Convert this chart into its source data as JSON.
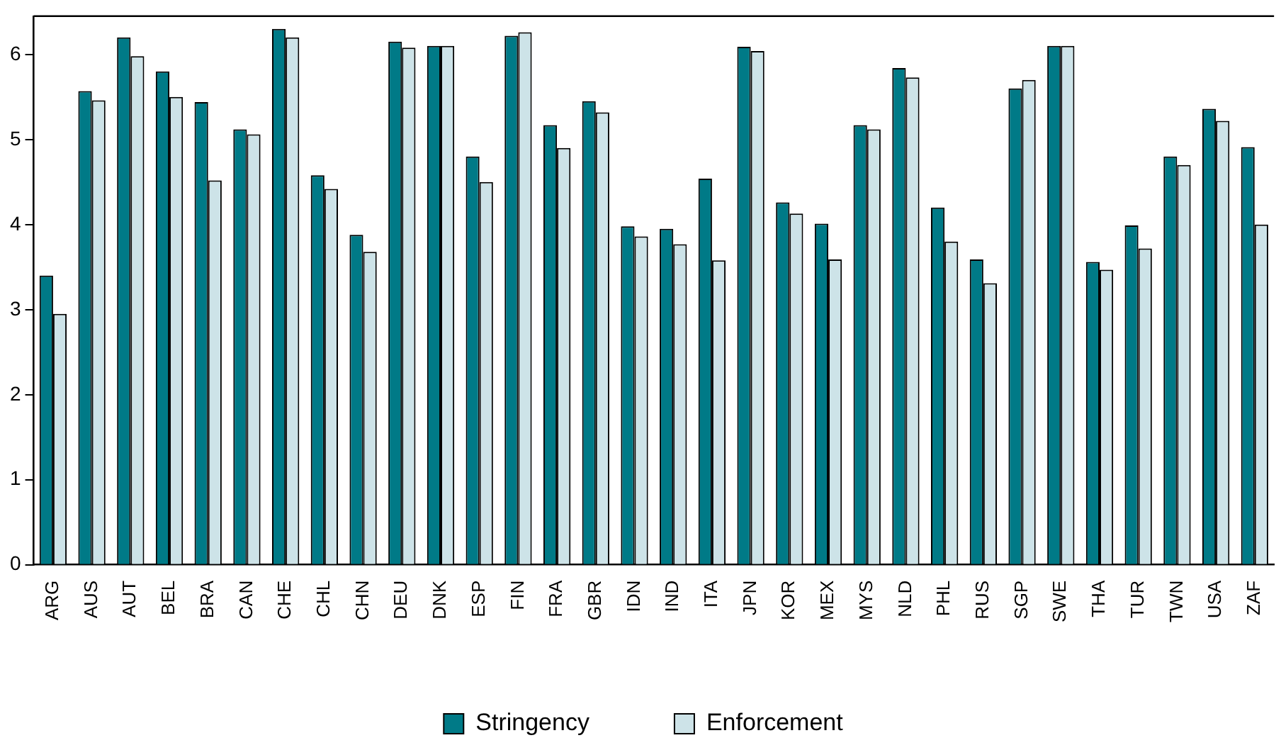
{
  "chart_data": {
    "type": "bar",
    "categories": [
      "ARG",
      "AUS",
      "AUT",
      "BEL",
      "BRA",
      "CAN",
      "CHE",
      "CHL",
      "CHN",
      "DEU",
      "DNK",
      "ESP",
      "FIN",
      "FRA",
      "GBR",
      "IDN",
      "IND",
      "ITA",
      "JPN",
      "KOR",
      "MEX",
      "MYS",
      "NLD",
      "PHL",
      "RUS",
      "SGP",
      "SWE",
      "THA",
      "TUR",
      "TWN",
      "USA",
      "ZAF"
    ],
    "series": [
      {
        "name": "Stringency",
        "color": "#007a87",
        "values": [
          3.4,
          5.57,
          6.2,
          5.8,
          5.44,
          5.12,
          6.3,
          4.58,
          3.88,
          6.15,
          6.1,
          4.8,
          6.22,
          5.17,
          5.45,
          3.98,
          3.95,
          4.54,
          6.09,
          4.26,
          4.01,
          5.17,
          5.84,
          4.2,
          3.59,
          5.6,
          6.1,
          3.56,
          3.99,
          4.8,
          5.36,
          4.91
        ]
      },
      {
        "name": "Enforcement",
        "color": "#cde3e8",
        "values": [
          2.95,
          5.46,
          5.98,
          5.5,
          4.52,
          5.06,
          6.2,
          4.42,
          3.68,
          6.08,
          6.1,
          4.5,
          6.26,
          4.9,
          5.32,
          3.86,
          3.77,
          3.58,
          6.04,
          4.13,
          3.59,
          5.12,
          5.73,
          3.8,
          3.31,
          5.7,
          6.1,
          3.47,
          3.72,
          4.7,
          5.22,
          4.0
        ]
      }
    ],
    "ylim": [
      0,
      6.45
    ],
    "yticks": [
      0,
      1,
      2,
      3,
      4,
      5,
      6
    ],
    "grid": false,
    "legend": "bottom"
  }
}
